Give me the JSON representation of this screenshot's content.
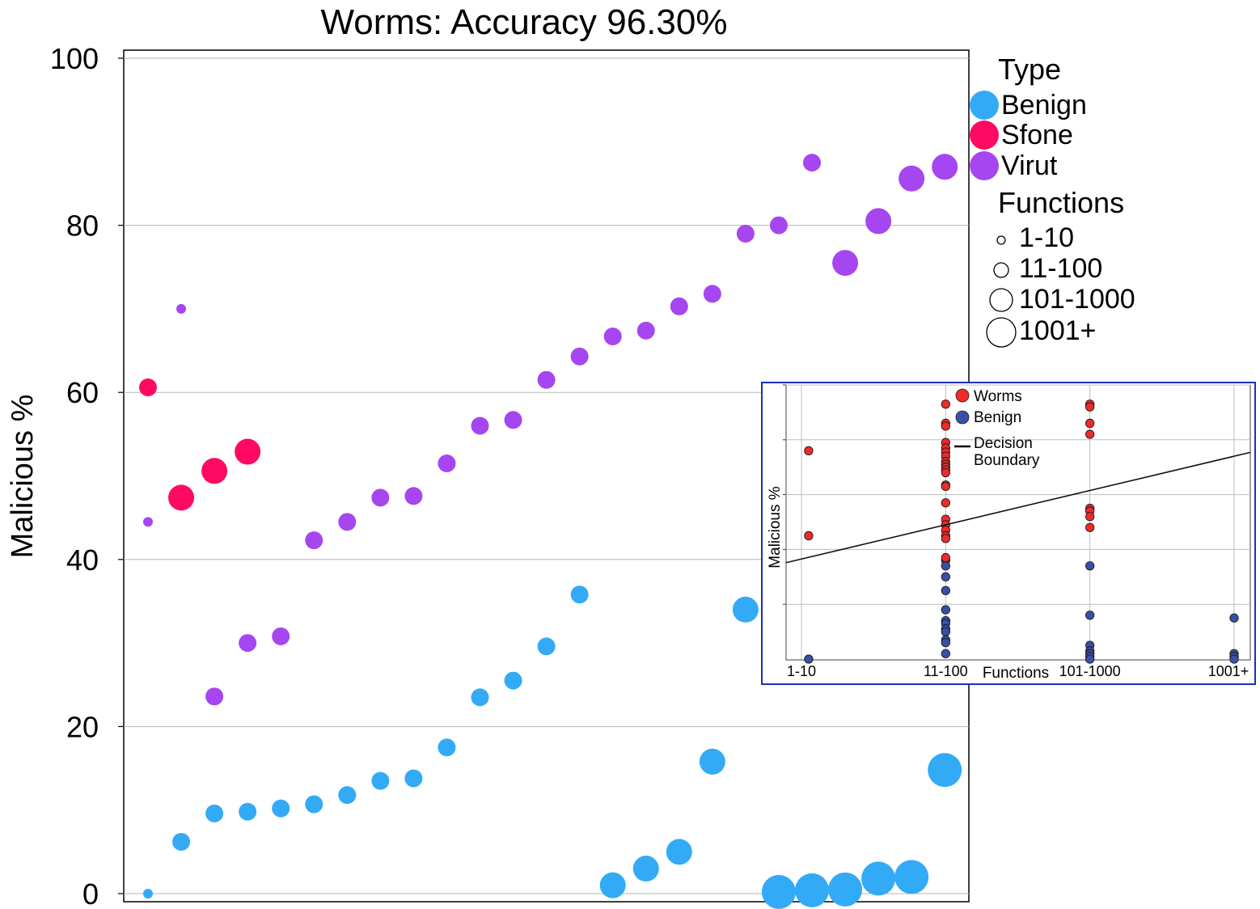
{
  "chart_data": {
    "type": "scatter",
    "title": "Worms: Accuracy 96.30%",
    "xlabel": "",
    "ylabel": "Malicious %",
    "ylim": [
      0,
      100
    ],
    "yticks": [
      0,
      20,
      40,
      60,
      80,
      100
    ],
    "grid": true,
    "colors": {
      "Benign": "#33aaf6",
      "Sfone": "#ff0a62",
      "Virut": "#a646f0"
    },
    "legend": {
      "position": "right",
      "type_title": "Type",
      "types": [
        "Benign",
        "Sfone",
        "Virut"
      ],
      "size_title": "Functions",
      "sizes": [
        "1-10",
        "11-100",
        "101-1000",
        "1001+"
      ]
    },
    "series": [
      {
        "name": "Benign",
        "points": [
          {
            "x": 1,
            "y": 0.0,
            "size": "1-10"
          },
          {
            "x": 2,
            "y": 6.2,
            "size": "11-100"
          },
          {
            "x": 3,
            "y": 9.6,
            "size": "11-100"
          },
          {
            "x": 4,
            "y": 9.8,
            "size": "11-100"
          },
          {
            "x": 5,
            "y": 10.2,
            "size": "11-100"
          },
          {
            "x": 6,
            "y": 10.7,
            "size": "11-100"
          },
          {
            "x": 7,
            "y": 11.8,
            "size": "11-100"
          },
          {
            "x": 8,
            "y": 13.5,
            "size": "11-100"
          },
          {
            "x": 9,
            "y": 13.8,
            "size": "11-100"
          },
          {
            "x": 10,
            "y": 17.5,
            "size": "11-100"
          },
          {
            "x": 11,
            "y": 23.5,
            "size": "11-100"
          },
          {
            "x": 12,
            "y": 25.5,
            "size": "11-100"
          },
          {
            "x": 13,
            "y": 29.6,
            "size": "11-100"
          },
          {
            "x": 14,
            "y": 35.8,
            "size": "11-100"
          },
          {
            "x": 15,
            "y": 1.0,
            "size": "101-1000"
          },
          {
            "x": 16,
            "y": 3.0,
            "size": "101-1000"
          },
          {
            "x": 17,
            "y": 5.0,
            "size": "101-1000"
          },
          {
            "x": 18,
            "y": 15.8,
            "size": "101-1000"
          },
          {
            "x": 19,
            "y": 34.0,
            "size": "101-1000"
          },
          {
            "x": 20,
            "y": 0.2,
            "size": "1001+"
          },
          {
            "x": 21,
            "y": 0.4,
            "size": "1001+"
          },
          {
            "x": 22,
            "y": 0.5,
            "size": "1001+"
          },
          {
            "x": 23,
            "y": 1.8,
            "size": "1001+"
          },
          {
            "x": 24,
            "y": 2.0,
            "size": "1001+"
          },
          {
            "x": 25,
            "y": 14.8,
            "size": "1001+"
          }
        ]
      },
      {
        "name": "Sfone",
        "points": [
          {
            "x": 1,
            "y": 60.6,
            "size": "11-100"
          },
          {
            "x": 2,
            "y": 47.4,
            "size": "101-1000"
          },
          {
            "x": 3,
            "y": 50.6,
            "size": "101-1000"
          },
          {
            "x": 4,
            "y": 52.9,
            "size": "101-1000"
          }
        ]
      },
      {
        "name": "Virut",
        "points": [
          {
            "x": 1,
            "y": 44.5,
            "size": "1-10"
          },
          {
            "x": 2,
            "y": 70.0,
            "size": "1-10"
          },
          {
            "x": 3,
            "y": 23.6,
            "size": "11-100"
          },
          {
            "x": 4,
            "y": 30.0,
            "size": "11-100"
          },
          {
            "x": 5,
            "y": 30.8,
            "size": "11-100"
          },
          {
            "x": 6,
            "y": 42.3,
            "size": "11-100"
          },
          {
            "x": 7,
            "y": 44.5,
            "size": "11-100"
          },
          {
            "x": 8,
            "y": 47.4,
            "size": "11-100"
          },
          {
            "x": 9,
            "y": 47.6,
            "size": "11-100"
          },
          {
            "x": 10,
            "y": 51.5,
            "size": "11-100"
          },
          {
            "x": 11,
            "y": 56.0,
            "size": "11-100"
          },
          {
            "x": 12,
            "y": 56.7,
            "size": "11-100"
          },
          {
            "x": 13,
            "y": 61.5,
            "size": "11-100"
          },
          {
            "x": 14,
            "y": 64.3,
            "size": "11-100"
          },
          {
            "x": 15,
            "y": 66.7,
            "size": "11-100"
          },
          {
            "x": 16,
            "y": 67.4,
            "size": "11-100"
          },
          {
            "x": 17,
            "y": 70.3,
            "size": "11-100"
          },
          {
            "x": 18,
            "y": 71.8,
            "size": "11-100"
          },
          {
            "x": 19,
            "y": 79.0,
            "size": "11-100"
          },
          {
            "x": 20,
            "y": 80.0,
            "size": "11-100"
          },
          {
            "x": 21,
            "y": 87.5,
            "size": "11-100"
          },
          {
            "x": 22,
            "y": 75.5,
            "size": "101-1000"
          },
          {
            "x": 23,
            "y": 80.5,
            "size": "101-1000"
          },
          {
            "x": 24,
            "y": 85.6,
            "size": "101-1000"
          },
          {
            "x": 25,
            "y": 87.0,
            "size": "101-1000"
          }
        ]
      }
    ],
    "inset": {
      "type": "scatter",
      "xlabel": "Functions",
      "ylabel": "Malicious %",
      "categories": [
        "1-10",
        "11-100",
        "101-1000",
        "1001+"
      ],
      "legend": {
        "worms": "Worms",
        "benign": "Benign",
        "boundary": "Decision Boundary"
      },
      "boundary": [
        [
          0.12,
          0.38
        ],
        [
          3.0,
          0.74
        ]
      ],
      "colors": {
        "Worms": "#ee2a2a",
        "Benign": "#3a4fa6"
      },
      "points": {
        "Worms": [
          [
            0.05,
            0.76
          ],
          [
            0.05,
            0.45
          ],
          [
            1.0,
            0.93
          ],
          [
            1.0,
            0.86
          ],
          [
            1.0,
            0.85
          ],
          [
            1.0,
            0.79
          ],
          [
            1.0,
            0.77
          ],
          [
            1.0,
            0.755
          ],
          [
            1.0,
            0.74
          ],
          [
            1.0,
            0.72
          ],
          [
            1.0,
            0.71
          ],
          [
            1.0,
            0.7
          ],
          [
            1.0,
            0.69
          ],
          [
            1.0,
            0.68
          ],
          [
            1.0,
            0.635
          ],
          [
            1.0,
            0.63
          ],
          [
            1.0,
            0.57
          ],
          [
            1.0,
            0.51
          ],
          [
            1.0,
            0.49
          ],
          [
            1.0,
            0.47
          ],
          [
            1.0,
            0.45
          ],
          [
            1.0,
            0.44
          ],
          [
            1.0,
            0.37
          ],
          [
            2.0,
            0.93
          ],
          [
            2.0,
            0.92
          ],
          [
            2.0,
            0.86
          ],
          [
            2.0,
            0.82
          ],
          [
            2.0,
            0.55
          ],
          [
            2.0,
            0.54
          ],
          [
            2.0,
            0.52
          ],
          [
            2.0,
            0.48
          ]
        ],
        "Benign": [
          [
            0.05,
            0.0
          ],
          [
            1.0,
            0.36
          ],
          [
            1.0,
            0.34
          ],
          [
            1.0,
            0.3
          ],
          [
            1.0,
            0.25
          ],
          [
            1.0,
            0.18
          ],
          [
            1.0,
            0.14
          ],
          [
            1.0,
            0.13
          ],
          [
            1.0,
            0.11
          ],
          [
            1.0,
            0.1
          ],
          [
            1.0,
            0.07
          ],
          [
            1.0,
            0.06
          ],
          [
            1.0,
            0.02
          ],
          [
            2.0,
            0.34
          ],
          [
            2.0,
            0.16
          ],
          [
            2.0,
            0.05
          ],
          [
            2.0,
            0.03
          ],
          [
            2.0,
            0.02
          ],
          [
            2.0,
            0.01
          ],
          [
            2.0,
            0.0
          ],
          [
            3.0,
            0.15
          ],
          [
            3.0,
            0.02
          ],
          [
            3.0,
            0.01
          ],
          [
            3.0,
            0.0
          ]
        ]
      }
    }
  }
}
